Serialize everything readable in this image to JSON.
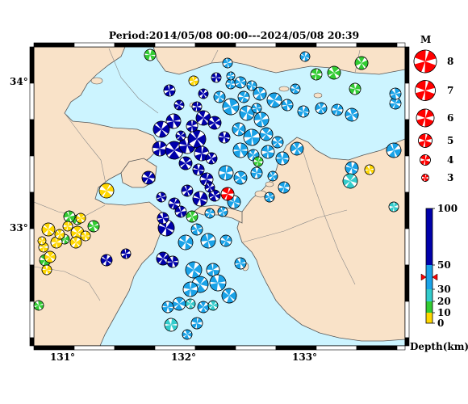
{
  "title": "Period:2014/05/08 00:00---2024/05/08 20:39",
  "map": {
    "lat_labels": [
      "34°",
      "33°"
    ],
    "lon_labels": [
      "131°",
      "132°",
      "133°"
    ],
    "colors": {
      "sea": "#ccf4ff",
      "land": "#f9e2c8",
      "coast": "#555555",
      "border": "#888888"
    }
  },
  "magnitude_legend": {
    "title": "M",
    "items": [
      {
        "label": "8",
        "m": 8
      },
      {
        "label": "7",
        "m": 7
      },
      {
        "label": "6",
        "m": 6
      },
      {
        "label": "5",
        "m": 5
      },
      {
        "label": "4",
        "m": 4
      },
      {
        "label": "3",
        "m": 3
      }
    ],
    "color": "#ff0000"
  },
  "depth_legend": {
    "title": "Depth(km)",
    "ticks": [
      "100",
      "50",
      "30",
      "20",
      "10",
      "0"
    ],
    "tick_values": [
      100,
      50,
      30,
      20,
      10,
      0
    ],
    "scale": [
      {
        "from": 0,
        "to": 10,
        "color": "#ffd700"
      },
      {
        "from": 10,
        "to": 20,
        "color": "#33cc33"
      },
      {
        "from": 20,
        "to": 30,
        "color": "#33cccc"
      },
      {
        "from": 30,
        "to": 50,
        "color": "#1aa3e8"
      },
      {
        "from": 50,
        "to": 100,
        "color": "#0000aa"
      }
    ],
    "current_marker_depth": 40
  },
  "latest_event": {
    "lon": 132.37,
    "lat": 33.28,
    "color": "#ff0000"
  }
}
